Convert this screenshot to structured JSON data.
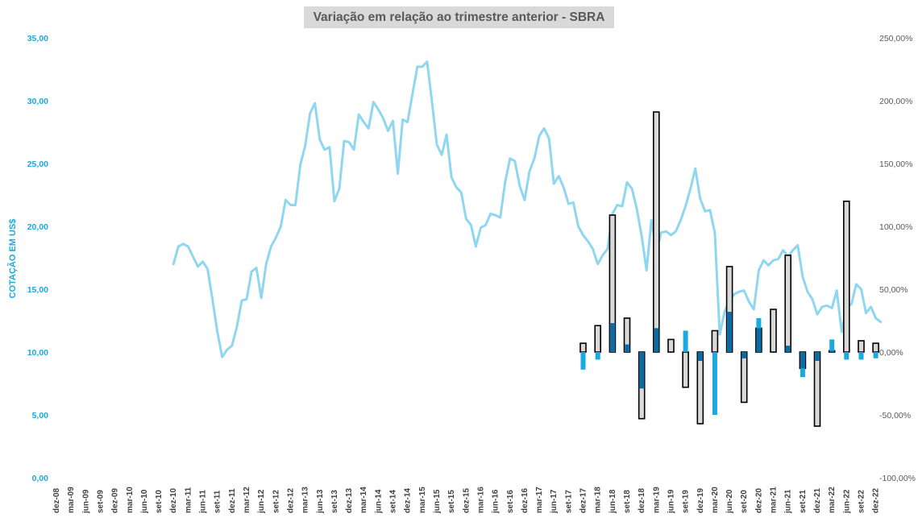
{
  "chart_data": {
    "type": "line+bar",
    "title": "Variação em relação ao trimestre anterior - SBRA",
    "ylabel": "COTAÇÃO EM US$",
    "y_left": {
      "lim": [
        0,
        35
      ],
      "ticks": [
        "0,00",
        "5,00",
        "10,00",
        "15,00",
        "20,00",
        "25,00",
        "30,00",
        "35,00"
      ]
    },
    "y_right": {
      "lim": [
        -1.0,
        2.5
      ],
      "ticks": [
        "-100,00%",
        "-50,00%",
        "0,00%",
        "50,00%",
        "100,00%",
        "150,00%",
        "200,00%",
        "250,00%"
      ]
    },
    "x_labels": [
      "dez-08",
      "mar-09",
      "jun-09",
      "set-09",
      "dez-09",
      "mar-10",
      "jun-10",
      "set-10",
      "dez-10",
      "mar-11",
      "jun-11",
      "set-11",
      "dez-11",
      "mar-12",
      "jun-12",
      "set-12",
      "dez-12",
      "mar-13",
      "jun-13",
      "set-13",
      "dez-13",
      "mar-14",
      "jun-14",
      "set-14",
      "dez-14",
      "mar-15",
      "jun-15",
      "set-15",
      "dez-15",
      "mar-16",
      "jun-16",
      "set-16",
      "dez-16",
      "mar-17",
      "jun-17",
      "set-17",
      "dez-17",
      "mar-18",
      "jun-18",
      "set-18",
      "dez-18",
      "mar-19",
      "jun-19",
      "set-19",
      "dez-19",
      "mar-20",
      "jun-20",
      "set-20",
      "dez-20",
      "mar-21",
      "jun-21",
      "set-21",
      "dez-21",
      "mar-22",
      "jun-22",
      "set-22",
      "dez-22"
    ],
    "price_line": {
      "start_index": 8,
      "points_per_quarter": 3,
      "values": [
        17.0,
        18.4,
        18.6,
        18.4,
        17.6,
        16.8,
        17.2,
        16.6,
        14.2,
        11.6,
        9.6,
        10.2,
        10.5,
        12.0,
        14.1,
        14.2,
        16.4,
        16.7,
        14.3,
        17.0,
        18.4,
        19.1,
        20.0,
        22.1,
        21.7,
        21.7,
        24.9,
        26.4,
        29.0,
        29.8,
        26.9,
        26.1,
        26.3,
        22.0,
        23.0,
        26.8,
        26.7,
        26.1,
        28.9,
        28.3,
        27.8,
        29.9,
        29.3,
        28.6,
        27.6,
        28.4,
        24.2,
        28.5,
        28.3,
        30.5,
        32.7,
        32.7,
        33.1,
        29.9,
        26.5,
        25.7,
        27.3,
        23.9,
        23.1,
        22.7,
        20.6,
        20.1,
        18.4,
        19.9,
        20.1,
        21.0,
        20.9,
        20.7,
        23.5,
        25.4,
        25.2,
        23.2,
        22.1,
        24.4,
        25.4,
        27.2,
        27.8,
        27.0,
        23.4,
        24.0,
        23.1,
        21.8,
        21.9,
        20.0,
        19.3,
        18.8,
        18.2,
        17.0,
        17.7,
        18.2,
        21.0,
        21.7,
        21.6,
        23.5,
        23.0,
        21.4,
        19.2,
        16.5,
        20.5,
        18.0,
        19.5,
        19.6,
        19.3,
        19.6,
        20.5,
        21.6,
        23.0,
        24.6,
        22.2,
        21.2,
        21.3,
        19.5,
        11.4,
        13.2,
        14.1,
        14.6,
        14.8,
        14.9,
        14.0,
        13.4,
        16.5,
        17.3,
        16.9,
        17.3,
        17.4,
        18.1,
        17.6,
        18.1,
        18.5,
        16.0,
        14.8,
        14.2,
        13.0,
        13.6,
        13.7,
        13.5,
        14.9,
        11.6,
        13.6,
        13.8,
        15.4,
        15.0,
        13.1,
        13.6,
        12.7,
        12.4
      ]
    },
    "quarterly_bars": {
      "quarters": [
        "dez-17",
        "mar-18",
        "jun-18",
        "set-18",
        "dez-18",
        "mar-19",
        "jun-19",
        "set-19",
        "dez-19",
        "mar-20",
        "jun-20",
        "set-20",
        "dez-20",
        "mar-21",
        "jun-21",
        "set-21",
        "dez-21",
        "mar-22",
        "jun-22",
        "set-22",
        "dez-22"
      ],
      "outlined_series": [
        0.07,
        0.21,
        1.09,
        0.27,
        -0.53,
        1.91,
        0.1,
        -0.28,
        -0.57,
        0.17,
        0.68,
        -0.4,
        0.19,
        0.34,
        0.77,
        -0.13,
        -0.59,
        0.01,
        1.2,
        0.09,
        0.07
      ],
      "blue_series": [
        -0.14,
        -0.06,
        0.23,
        0.06,
        -0.29,
        0.19,
        0.0,
        0.17,
        -0.07,
        -0.5,
        0.32,
        -0.05,
        0.27,
        0.0,
        0.05,
        -0.2,
        -0.07,
        0.1,
        -0.06,
        -0.06,
        -0.05
      ],
      "colors": {
        "price_line": "#8fd6f0",
        "outlined_fill": "#d9d9d9",
        "outlined_stroke": "#000000",
        "blue_light": "#1ba9e1",
        "blue_dark": "#0b6aa2"
      }
    }
  }
}
